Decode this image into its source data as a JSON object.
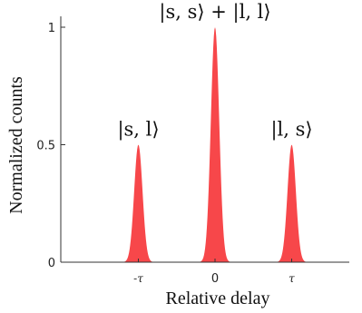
{
  "chart_data": {
    "type": "area",
    "title": "",
    "xlabel": "Relative delay",
    "ylabel": "Normalized counts",
    "ylim": [
      0,
      1
    ],
    "xlim": [
      -2,
      2
    ],
    "grid": false,
    "legend": "none",
    "y_ticks": [
      "0",
      "0.5",
      "1"
    ],
    "x_ticks": [
      {
        "x": -1,
        "label": "-τ"
      },
      {
        "x": 0,
        "label": "0"
      },
      {
        "x": 1,
        "label": "τ"
      }
    ],
    "series": [
      {
        "color": "#f7474a",
        "peaks": [
          {
            "x": -1,
            "height": 0.5,
            "label": "|s, l⟩"
          },
          {
            "x": 0,
            "height": 1.0,
            "label": "|s, s⟩ + |l, l⟩"
          },
          {
            "x": 1,
            "height": 0.5,
            "label": "|l, s⟩"
          }
        ]
      }
    ]
  }
}
